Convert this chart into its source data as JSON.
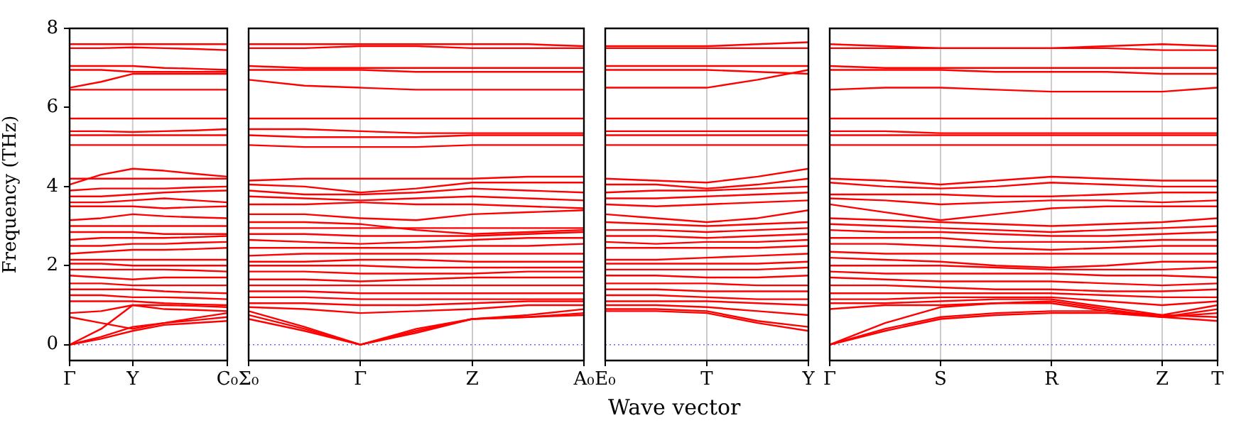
{
  "chart_data": [
    {
      "type": "line",
      "ylabel": "Frequency (THz)",
      "categories": [
        "Γ",
        null,
        "Y",
        null,
        null,
        "C₀"
      ],
      "ylim": [
        -0.4,
        8
      ],
      "yticks": [
        0,
        2,
        4,
        6,
        8
      ],
      "ref_lines": [
        {
          "axis": "y",
          "value": 0,
          "color": "#6666ff",
          "line_style": "dotted"
        },
        {
          "axis": "x",
          "value": "Y",
          "color": "#cccccc"
        }
      ],
      "series": [
        {
          "color": "#ff0000",
          "values": [
            7.6,
            7.6,
            7.6,
            7.6,
            7.6,
            7.6
          ]
        },
        {
          "color": "#ff0000",
          "values": [
            7.5,
            7.5,
            7.52,
            7.5,
            7.48,
            7.45
          ]
        },
        {
          "color": "#ff0000",
          "values": [
            7.05,
            7.05,
            7.05,
            7.0,
            6.98,
            6.95
          ]
        },
        {
          "color": "#ff0000",
          "values": [
            6.95,
            6.95,
            6.9,
            6.9,
            6.9,
            6.9
          ]
        },
        {
          "color": "#ff0000",
          "values": [
            6.5,
            6.65,
            6.85,
            6.85,
            6.85,
            6.85
          ]
        },
        {
          "color": "#ff0000",
          "values": [
            6.45,
            6.45,
            6.45,
            6.45,
            6.45,
            6.45
          ]
        },
        {
          "color": "#ff0000",
          "values": [
            5.72,
            5.72,
            5.72,
            5.72,
            5.72,
            5.72
          ]
        },
        {
          "color": "#ff0000",
          "values": [
            5.4,
            5.4,
            5.38,
            5.4,
            5.42,
            5.45
          ]
        },
        {
          "color": "#ff0000",
          "values": [
            5.3,
            5.3,
            5.3,
            5.3,
            5.3,
            5.3
          ]
        },
        {
          "color": "#ff0000",
          "values": [
            5.05,
            5.05,
            5.05,
            5.05,
            5.05,
            5.05
          ]
        },
        {
          "color": "#ff0000",
          "values": [
            4.2,
            4.2,
            4.2,
            4.2,
            4.2,
            4.2
          ]
        },
        {
          "color": "#ff0000",
          "values": [
            4.05,
            4.3,
            4.45,
            4.4,
            4.32,
            4.25
          ]
        },
        {
          "color": "#ff0000",
          "values": [
            3.9,
            3.95,
            3.95,
            3.95,
            3.98,
            4.0
          ]
        },
        {
          "color": "#ff0000",
          "values": [
            3.75,
            3.75,
            3.8,
            3.85,
            3.88,
            3.9
          ]
        },
        {
          "color": "#ff0000",
          "values": [
            3.6,
            3.6,
            3.65,
            3.7,
            3.65,
            3.6
          ]
        },
        {
          "color": "#ff0000",
          "values": [
            3.5,
            3.5,
            3.5,
            3.45,
            3.48,
            3.5
          ]
        },
        {
          "color": "#ff0000",
          "values": [
            3.15,
            3.2,
            3.3,
            3.25,
            3.22,
            3.2
          ]
        },
        {
          "color": "#ff0000",
          "values": [
            3.0,
            3.0,
            3.0,
            3.0,
            3.0,
            3.0
          ]
        },
        {
          "color": "#ff0000",
          "values": [
            2.85,
            2.85,
            2.85,
            2.8,
            2.8,
            2.8
          ]
        },
        {
          "color": "#ff0000",
          "values": [
            2.65,
            2.7,
            2.7,
            2.7,
            2.72,
            2.75
          ]
        },
        {
          "color": "#ff0000",
          "values": [
            2.5,
            2.5,
            2.55,
            2.55,
            2.58,
            2.6
          ]
        },
        {
          "color": "#ff0000",
          "values": [
            2.3,
            2.35,
            2.4,
            2.4,
            2.42,
            2.45
          ]
        },
        {
          "color": "#ff0000",
          "values": [
            2.15,
            2.15,
            2.15,
            2.15,
            2.15,
            2.15
          ]
        },
        {
          "color": "#ff0000",
          "values": [
            2.05,
            2.05,
            2.0,
            2.0,
            2.0,
            2.0
          ]
        },
        {
          "color": "#ff0000",
          "values": [
            1.9,
            1.9,
            1.9,
            1.9,
            1.88,
            1.85
          ]
        },
        {
          "color": "#ff0000",
          "values": [
            1.75,
            1.7,
            1.65,
            1.7,
            1.7,
            1.7
          ]
        },
        {
          "color": "#ff0000",
          "values": [
            1.55,
            1.55,
            1.5,
            1.5,
            1.5,
            1.5
          ]
        },
        {
          "color": "#ff0000",
          "values": [
            1.4,
            1.4,
            1.4,
            1.35,
            1.32,
            1.3
          ]
        },
        {
          "color": "#ff0000",
          "values": [
            1.25,
            1.25,
            1.2,
            1.2,
            1.18,
            1.15
          ]
        },
        {
          "color": "#ff0000",
          "values": [
            1.1,
            1.1,
            1.1,
            1.05,
            1.02,
            1.0
          ]
        },
        {
          "color": "#ff0000",
          "values": [
            0.8,
            0.85,
            1.0,
            1.0,
            0.98,
            0.95
          ]
        },
        {
          "color": "#ff0000",
          "values": [
            0.7,
            0.55,
            0.4,
            0.55,
            0.68,
            0.8
          ]
        },
        {
          "color": "#ff0000",
          "values": [
            0,
            0.4,
            1.0,
            0.9,
            0.88,
            0.85
          ]
        },
        {
          "color": "#ff0000",
          "values": [
            0,
            0.2,
            0.45,
            0.55,
            0.62,
            0.7
          ]
        },
        {
          "color": "#ff0000",
          "values": [
            0,
            0.15,
            0.35,
            0.5,
            0.55,
            0.6
          ]
        }
      ]
    },
    {
      "type": "line",
      "tick_labels": "x",
      "grid": "x",
      "categories": [
        "Σ₀",
        null,
        "Γ",
        null,
        "Z",
        null,
        "A₀"
      ],
      "ylim": [
        -0.4,
        8
      ],
      "yticks": [
        0,
        2,
        4,
        6,
        8
      ],
      "ref_lines": [
        {
          "axis": "y",
          "value": 0,
          "color": "#6666ff",
          "line_style": "dotted"
        }
      ],
      "series": [
        {
          "color": "#ff0000",
          "values": [
            7.6,
            7.6,
            7.6,
            7.6,
            7.6,
            7.6,
            7.55
          ]
        },
        {
          "color": "#ff0000",
          "values": [
            7.5,
            7.5,
            7.55,
            7.55,
            7.5,
            7.5,
            7.5
          ]
        },
        {
          "color": "#ff0000",
          "values": [
            7.05,
            7.0,
            7.0,
            7.0,
            7.0,
            7.0,
            7.0
          ]
        },
        {
          "color": "#ff0000",
          "values": [
            6.95,
            6.95,
            6.95,
            6.9,
            6.9,
            6.9,
            6.9
          ]
        },
        {
          "color": "#ff0000",
          "values": [
            6.7,
            6.55,
            6.5,
            6.45,
            6.45,
            6.45,
            6.45
          ]
        },
        {
          "color": "#ff0000",
          "values": [
            5.72,
            5.72,
            5.72,
            5.72,
            5.72,
            5.72,
            5.72
          ]
        },
        {
          "color": "#ff0000",
          "values": [
            5.45,
            5.45,
            5.4,
            5.35,
            5.35,
            5.35,
            5.35
          ]
        },
        {
          "color": "#ff0000",
          "values": [
            5.3,
            5.25,
            5.25,
            5.25,
            5.3,
            5.3,
            5.3
          ]
        },
        {
          "color": "#ff0000",
          "values": [
            5.05,
            5.0,
            5.0,
            5.0,
            5.05,
            5.05,
            5.05
          ]
        },
        {
          "color": "#ff0000",
          "values": [
            4.15,
            4.2,
            4.2,
            4.2,
            4.2,
            4.25,
            4.25
          ]
        },
        {
          "color": "#ff0000",
          "values": [
            4.05,
            4.0,
            3.85,
            3.95,
            4.1,
            4.1,
            4.1
          ]
        },
        {
          "color": "#ff0000",
          "values": [
            3.9,
            3.8,
            3.8,
            3.85,
            3.95,
            3.9,
            3.85
          ]
        },
        {
          "color": "#ff0000",
          "values": [
            3.75,
            3.7,
            3.65,
            3.7,
            3.75,
            3.7,
            3.65
          ]
        },
        {
          "color": "#ff0000",
          "values": [
            3.55,
            3.55,
            3.6,
            3.55,
            3.55,
            3.5,
            3.45
          ]
        },
        {
          "color": "#ff0000",
          "values": [
            3.3,
            3.3,
            3.2,
            3.15,
            3.3,
            3.35,
            3.4
          ]
        },
        {
          "color": "#ff0000",
          "values": [
            3.1,
            3.1,
            3.05,
            2.9,
            2.8,
            2.85,
            2.9
          ]
        },
        {
          "color": "#ff0000",
          "values": [
            2.95,
            2.95,
            2.95,
            2.95,
            2.95,
            2.95,
            2.95
          ]
        },
        {
          "color": "#ff0000",
          "values": [
            2.8,
            2.8,
            2.75,
            2.75,
            2.75,
            2.8,
            2.85
          ]
        },
        {
          "color": "#ff0000",
          "values": [
            2.65,
            2.6,
            2.55,
            2.6,
            2.65,
            2.7,
            2.7
          ]
        },
        {
          "color": "#ff0000",
          "values": [
            2.45,
            2.45,
            2.45,
            2.45,
            2.5,
            2.5,
            2.55
          ]
        },
        {
          "color": "#ff0000",
          "values": [
            2.25,
            2.3,
            2.3,
            2.3,
            2.3,
            2.3,
            2.3
          ]
        },
        {
          "color": "#ff0000",
          "values": [
            2.1,
            2.1,
            2.15,
            2.15,
            2.1,
            2.1,
            2.1
          ]
        },
        {
          "color": "#ff0000",
          "values": [
            2.0,
            2.0,
            2.0,
            1.95,
            1.95,
            1.95,
            1.95
          ]
        },
        {
          "color": "#ff0000",
          "values": [
            1.85,
            1.85,
            1.8,
            1.8,
            1.8,
            1.85,
            1.85
          ]
        },
        {
          "color": "#ff0000",
          "values": [
            1.65,
            1.65,
            1.6,
            1.65,
            1.7,
            1.7,
            1.7
          ]
        },
        {
          "color": "#ff0000",
          "values": [
            1.5,
            1.5,
            1.5,
            1.5,
            1.5,
            1.5,
            1.5
          ]
        },
        {
          "color": "#ff0000",
          "values": [
            1.35,
            1.35,
            1.3,
            1.3,
            1.3,
            1.3,
            1.3
          ]
        },
        {
          "color": "#ff0000",
          "values": [
            1.2,
            1.2,
            1.15,
            1.15,
            1.15,
            1.15,
            1.15
          ]
        },
        {
          "color": "#ff0000",
          "values": [
            1.05,
            1.05,
            1.0,
            1.0,
            1.05,
            1.1,
            1.1
          ]
        },
        {
          "color": "#ff0000",
          "values": [
            0.95,
            0.9,
            0.8,
            0.85,
            0.9,
            1.0,
            1.0
          ]
        },
        {
          "color": "#ff0000",
          "values": [
            0.85,
            0.45,
            0,
            0.4,
            0.65,
            0.75,
            0.9
          ]
        },
        {
          "color": "#ff0000",
          "values": [
            0.75,
            0.4,
            0,
            0.35,
            0.65,
            0.7,
            0.8
          ]
        },
        {
          "color": "#ff0000",
          "values": [
            0.65,
            0.35,
            0,
            0.3,
            0.65,
            0.7,
            0.75
          ]
        }
      ]
    },
    {
      "type": "line",
      "tick_labels": "x",
      "xlabel": "Wave vector",
      "categories": [
        "E₀",
        null,
        "T",
        null,
        "Y"
      ],
      "ylim": [
        -0.4,
        8
      ],
      "yticks": [
        0,
        2,
        4,
        6,
        8
      ],
      "ref_lines": [
        {
          "axis": "y",
          "value": 0,
          "color": "#6666ff",
          "line_style": "dotted"
        },
        {
          "axis": "x",
          "value": "T",
          "color": "#cccccc"
        }
      ],
      "series": [
        {
          "color": "#ff0000",
          "values": [
            7.55,
            7.55,
            7.55,
            7.6,
            7.65
          ]
        },
        {
          "color": "#ff0000",
          "values": [
            7.5,
            7.5,
            7.5,
            7.5,
            7.5
          ]
        },
        {
          "color": "#ff0000",
          "values": [
            7.05,
            7.05,
            7.05,
            7.05,
            7.05
          ]
        },
        {
          "color": "#ff0000",
          "values": [
            6.95,
            6.95,
            6.95,
            6.9,
            6.85
          ]
        },
        {
          "color": "#ff0000",
          "values": [
            6.5,
            6.5,
            6.5,
            6.7,
            6.95
          ]
        },
        {
          "color": "#ff0000",
          "values": [
            5.72,
            5.72,
            5.72,
            5.72,
            5.72
          ]
        },
        {
          "color": "#ff0000",
          "values": [
            5.4,
            5.4,
            5.4,
            5.4,
            5.4
          ]
        },
        {
          "color": "#ff0000",
          "values": [
            5.3,
            5.3,
            5.3,
            5.3,
            5.3
          ]
        },
        {
          "color": "#ff0000",
          "values": [
            5.05,
            5.05,
            5.05,
            5.05,
            5.05
          ]
        },
        {
          "color": "#ff0000",
          "values": [
            4.2,
            4.15,
            4.1,
            4.25,
            4.45
          ]
        },
        {
          "color": "#ff0000",
          "values": [
            4.05,
            4.05,
            3.95,
            4.05,
            4.2
          ]
        },
        {
          "color": "#ff0000",
          "values": [
            3.85,
            3.9,
            3.9,
            3.95,
            4.0
          ]
        },
        {
          "color": "#ff0000",
          "values": [
            3.7,
            3.7,
            3.75,
            3.8,
            3.85
          ]
        },
        {
          "color": "#ff0000",
          "values": [
            3.55,
            3.5,
            3.55,
            3.6,
            3.65
          ]
        },
        {
          "color": "#ff0000",
          "values": [
            3.3,
            3.2,
            3.1,
            3.2,
            3.4
          ]
        },
        {
          "color": "#ff0000",
          "values": [
            3.1,
            3.05,
            3.0,
            3.05,
            3.1
          ]
        },
        {
          "color": "#ff0000",
          "values": [
            2.9,
            2.9,
            2.85,
            2.9,
            2.95
          ]
        },
        {
          "color": "#ff0000",
          "values": [
            2.75,
            2.75,
            2.7,
            2.75,
            2.8
          ]
        },
        {
          "color": "#ff0000",
          "values": [
            2.6,
            2.55,
            2.6,
            2.6,
            2.65
          ]
        },
        {
          "color": "#ff0000",
          "values": [
            2.45,
            2.45,
            2.45,
            2.45,
            2.5
          ]
        },
        {
          "color": "#ff0000",
          "values": [
            2.15,
            2.15,
            2.2,
            2.25,
            2.3
          ]
        },
        {
          "color": "#ff0000",
          "values": [
            2.05,
            2.05,
            2.05,
            2.05,
            2.1
          ]
        },
        {
          "color": "#ff0000",
          "values": [
            1.9,
            1.9,
            1.9,
            1.9,
            1.95
          ]
        },
        {
          "color": "#ff0000",
          "values": [
            1.75,
            1.75,
            1.7,
            1.7,
            1.75
          ]
        },
        {
          "color": "#ff0000",
          "values": [
            1.55,
            1.55,
            1.55,
            1.5,
            1.5
          ]
        },
        {
          "color": "#ff0000",
          "values": [
            1.4,
            1.4,
            1.35,
            1.35,
            1.35
          ]
        },
        {
          "color": "#ff0000",
          "values": [
            1.25,
            1.25,
            1.2,
            1.15,
            1.15
          ]
        },
        {
          "color": "#ff0000",
          "values": [
            1.1,
            1.1,
            1.1,
            1.05,
            1.0
          ]
        },
        {
          "color": "#ff0000",
          "values": [
            1.0,
            1.0,
            0.95,
            0.85,
            0.75
          ]
        },
        {
          "color": "#ff0000",
          "values": [
            0.9,
            0.9,
            0.85,
            0.6,
            0.45
          ]
        },
        {
          "color": "#ff0000",
          "values": [
            0.85,
            0.85,
            0.8,
            0.55,
            0.35
          ]
        }
      ]
    },
    {
      "type": "line",
      "tick_labels": "x",
      "grid": "x",
      "categories": [
        "Γ",
        null,
        "S",
        null,
        "R",
        null,
        "Z",
        "T"
      ],
      "ylim": [
        -0.4,
        8
      ],
      "yticks": [
        0,
        2,
        4,
        6,
        8
      ],
      "ref_lines": [
        {
          "axis": "y",
          "value": 0,
          "color": "#6666ff",
          "line_style": "dotted"
        }
      ],
      "series": [
        {
          "color": "#ff0000",
          "values": [
            7.6,
            7.55,
            7.5,
            7.5,
            7.5,
            7.55,
            7.6,
            7.55
          ]
        },
        {
          "color": "#ff0000",
          "values": [
            7.5,
            7.5,
            7.5,
            7.5,
            7.5,
            7.5,
            7.45,
            7.45
          ]
        },
        {
          "color": "#ff0000",
          "values": [
            7.05,
            7.0,
            7.0,
            7.0,
            7.0,
            7.0,
            7.0,
            7.0
          ]
        },
        {
          "color": "#ff0000",
          "values": [
            6.95,
            6.95,
            6.95,
            6.9,
            6.9,
            6.9,
            6.85,
            6.85
          ]
        },
        {
          "color": "#ff0000",
          "values": [
            6.45,
            6.5,
            6.5,
            6.45,
            6.4,
            6.4,
            6.4,
            6.5
          ]
        },
        {
          "color": "#ff0000",
          "values": [
            5.72,
            5.72,
            5.72,
            5.72,
            5.72,
            5.72,
            5.72,
            5.72
          ]
        },
        {
          "color": "#ff0000",
          "values": [
            5.4,
            5.4,
            5.35,
            5.35,
            5.35,
            5.35,
            5.35,
            5.35
          ]
        },
        {
          "color": "#ff0000",
          "values": [
            5.3,
            5.3,
            5.3,
            5.3,
            5.3,
            5.3,
            5.3,
            5.3
          ]
        },
        {
          "color": "#ff0000",
          "values": [
            5.05,
            5.05,
            5.05,
            5.05,
            5.05,
            5.05,
            5.05,
            5.05
          ]
        },
        {
          "color": "#ff0000",
          "values": [
            4.2,
            4.15,
            4.05,
            4.15,
            4.25,
            4.2,
            4.15,
            4.15
          ]
        },
        {
          "color": "#ff0000",
          "values": [
            4.1,
            4.0,
            3.95,
            4.0,
            4.1,
            4.05,
            4.0,
            4.0
          ]
        },
        {
          "color": "#ff0000",
          "values": [
            3.8,
            3.8,
            3.8,
            3.75,
            3.75,
            3.8,
            3.85,
            3.85
          ]
        },
        {
          "color": "#ff0000",
          "values": [
            3.7,
            3.65,
            3.55,
            3.6,
            3.65,
            3.65,
            3.6,
            3.65
          ]
        },
        {
          "color": "#ff0000",
          "values": [
            3.55,
            3.35,
            3.15,
            3.3,
            3.45,
            3.5,
            3.5,
            3.5
          ]
        },
        {
          "color": "#ff0000",
          "values": [
            3.2,
            3.15,
            3.1,
            3.05,
            3.0,
            3.05,
            3.1,
            3.2
          ]
        },
        {
          "color": "#ff0000",
          "values": [
            3.05,
            3.0,
            2.95,
            2.9,
            2.85,
            2.9,
            2.95,
            3.0
          ]
        },
        {
          "color": "#ff0000",
          "values": [
            2.9,
            2.85,
            2.85,
            2.8,
            2.75,
            2.75,
            2.8,
            2.85
          ]
        },
        {
          "color": "#ff0000",
          "values": [
            2.7,
            2.7,
            2.7,
            2.6,
            2.6,
            2.6,
            2.65,
            2.65
          ]
        },
        {
          "color": "#ff0000",
          "values": [
            2.55,
            2.55,
            2.5,
            2.45,
            2.4,
            2.45,
            2.5,
            2.5
          ]
        },
        {
          "color": "#ff0000",
          "values": [
            2.35,
            2.3,
            2.3,
            2.3,
            2.3,
            2.3,
            2.3,
            2.3
          ]
        },
        {
          "color": "#ff0000",
          "values": [
            2.2,
            2.15,
            2.1,
            2.0,
            1.95,
            2.0,
            2.1,
            2.1
          ]
        },
        {
          "color": "#ff0000",
          "values": [
            2.0,
            2.0,
            2.0,
            1.95,
            1.9,
            1.9,
            1.9,
            1.95
          ]
        },
        {
          "color": "#ff0000",
          "values": [
            1.85,
            1.8,
            1.8,
            1.8,
            1.8,
            1.75,
            1.75,
            1.7
          ]
        },
        {
          "color": "#ff0000",
          "values": [
            1.7,
            1.65,
            1.6,
            1.6,
            1.6,
            1.55,
            1.5,
            1.55
          ]
        },
        {
          "color": "#ff0000",
          "values": [
            1.5,
            1.5,
            1.45,
            1.4,
            1.4,
            1.35,
            1.35,
            1.4
          ]
        },
        {
          "color": "#ff0000",
          "values": [
            1.3,
            1.3,
            1.3,
            1.3,
            1.3,
            1.25,
            1.2,
            1.2
          ]
        },
        {
          "color": "#ff0000",
          "values": [
            1.15,
            1.15,
            1.2,
            1.2,
            1.2,
            1.1,
            1.0,
            1.1
          ]
        },
        {
          "color": "#ff0000",
          "values": [
            1.05,
            1.05,
            1.1,
            1.15,
            1.15,
            0.95,
            0.75,
            1.0
          ]
        },
        {
          "color": "#ff0000",
          "values": [
            0.9,
            1.0,
            1.0,
            1.05,
            1.05,
            0.85,
            0.7,
            0.9
          ]
        },
        {
          "color": "#ff0000",
          "values": [
            0,
            0.55,
            0.95,
            1.05,
            1.1,
            0.9,
            0.7,
            0.8
          ]
        },
        {
          "color": "#ff0000",
          "values": [
            0,
            0.4,
            0.7,
            0.8,
            0.85,
            0.85,
            0.75,
            0.7
          ]
        },
        {
          "color": "#ff0000",
          "values": [
            0,
            0.35,
            0.65,
            0.75,
            0.8,
            0.8,
            0.7,
            0.6
          ]
        }
      ]
    }
  ]
}
